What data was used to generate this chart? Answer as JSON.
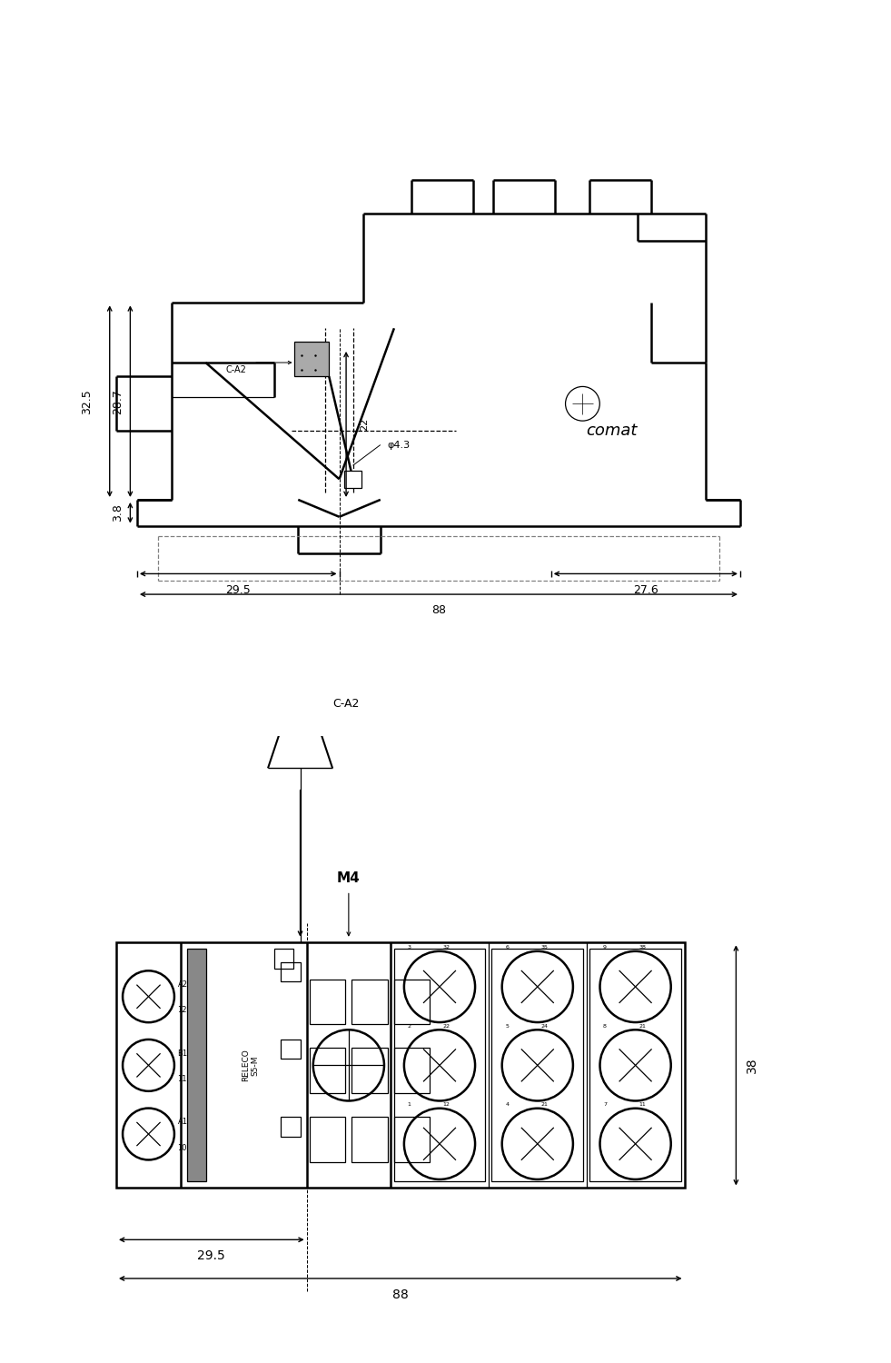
{
  "bg_color": "#ffffff",
  "lc": "#000000",
  "gray_fill": "#aaaaaa",
  "comat_text": "comat",
  "label_releco": "RELECO\nS5-M",
  "label_m4": "M4",
  "label_ca2": "C-A2",
  "dim_325": "32.5",
  "dim_287": "28.7",
  "dim_38_top": "3.8",
  "dim_295": "29.5",
  "dim_276": "27.6",
  "dim_88": "88",
  "dim_22": "22",
  "dim_43": "φ4.3",
  "dim_38": "38",
  "dim_295b": "29.5",
  "dim_88b": "88",
  "lw_main": 1.8,
  "lw_thin": 0.9,
  "lw_dim": 1.0
}
